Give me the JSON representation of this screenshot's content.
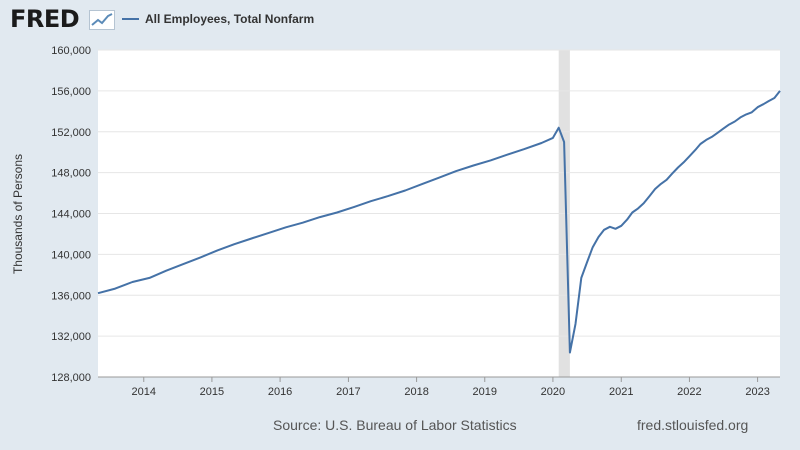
{
  "header": {
    "logo_text": "FRED",
    "logo_icon": "trend-line-icon",
    "series_label": "All Employees, Total Nonfarm"
  },
  "footer": {
    "source": "Source: U.S. Bureau of Labor Statistics",
    "site": "fred.stlouisfed.org"
  },
  "colors": {
    "background": "#e1e9f0",
    "plot_background": "#ffffff",
    "line": "#4572a7",
    "recession": "#e1e1e1",
    "grid": "#e6e6e6"
  },
  "chart_data": {
    "type": "line",
    "title": "",
    "xlabel": "",
    "ylabel": "Thousands of Persons",
    "xlim": [
      "2013-05-01",
      "2023-05-01"
    ],
    "ylim": [
      128000,
      160000
    ],
    "y_ticks": [
      128000,
      132000,
      136000,
      140000,
      144000,
      148000,
      152000,
      156000,
      160000
    ],
    "y_tick_labels": [
      "128,000",
      "132,000",
      "136,000",
      "140,000",
      "144,000",
      "148,000",
      "152,000",
      "156,000",
      "160,000"
    ],
    "x_ticks": [
      "2014-01-01",
      "2015-01-01",
      "2016-01-01",
      "2017-01-01",
      "2018-01-01",
      "2019-01-01",
      "2020-01-01",
      "2021-01-01",
      "2022-01-01",
      "2023-01-01"
    ],
    "x_tick_labels": [
      "2014",
      "2015",
      "2016",
      "2017",
      "2018",
      "2019",
      "2020",
      "2021",
      "2022",
      "2023"
    ],
    "grid": "horizontal",
    "legend": "top-left",
    "recessions": [
      {
        "start": "2020-02-01",
        "end": "2020-04-01"
      }
    ],
    "series": [
      {
        "name": "All Employees, Total Nonfarm",
        "color": "#4572a7",
        "points": [
          [
            "2013-05-01",
            136200
          ],
          [
            "2013-08-01",
            136650
          ],
          [
            "2013-11-01",
            137300
          ],
          [
            "2014-02-01",
            137700
          ],
          [
            "2014-05-01",
            138400
          ],
          [
            "2014-08-01",
            139050
          ],
          [
            "2014-11-01",
            139700
          ],
          [
            "2015-02-01",
            140400
          ],
          [
            "2015-05-01",
            141000
          ],
          [
            "2015-08-01",
            141550
          ],
          [
            "2015-11-01",
            142100
          ],
          [
            "2016-02-01",
            142650
          ],
          [
            "2016-05-01",
            143100
          ],
          [
            "2016-08-01",
            143650
          ],
          [
            "2016-11-01",
            144100
          ],
          [
            "2017-02-01",
            144650
          ],
          [
            "2017-05-01",
            145200
          ],
          [
            "2017-08-01",
            145700
          ],
          [
            "2017-11-01",
            146250
          ],
          [
            "2018-02-01",
            146900
          ],
          [
            "2018-05-01",
            147500
          ],
          [
            "2018-08-01",
            148150
          ],
          [
            "2018-11-01",
            148700
          ],
          [
            "2019-02-01",
            149200
          ],
          [
            "2019-05-01",
            149750
          ],
          [
            "2019-08-01",
            150300
          ],
          [
            "2019-11-01",
            150900
          ],
          [
            "2020-01-01",
            151400
          ],
          [
            "2020-02-01",
            152400
          ],
          [
            "2020-03-01",
            151000
          ],
          [
            "2020-04-01",
            130400
          ],
          [
            "2020-05-01",
            133200
          ],
          [
            "2020-06-01",
            137700
          ],
          [
            "2020-07-01",
            139200
          ],
          [
            "2020-08-01",
            140700
          ],
          [
            "2020-09-01",
            141700
          ],
          [
            "2020-10-01",
            142400
          ],
          [
            "2020-11-01",
            142700
          ],
          [
            "2020-12-01",
            142500
          ],
          [
            "2021-01-01",
            142800
          ],
          [
            "2021-02-01",
            143400
          ],
          [
            "2021-03-01",
            144100
          ],
          [
            "2021-04-01",
            144500
          ],
          [
            "2021-05-01",
            145000
          ],
          [
            "2021-06-01",
            145700
          ],
          [
            "2021-07-01",
            146400
          ],
          [
            "2021-08-01",
            146900
          ],
          [
            "2021-09-01",
            147300
          ],
          [
            "2021-10-01",
            147900
          ],
          [
            "2021-11-01",
            148500
          ],
          [
            "2021-12-01",
            149000
          ],
          [
            "2022-01-01",
            149600
          ],
          [
            "2022-02-01",
            150200
          ],
          [
            "2022-03-01",
            150800
          ],
          [
            "2022-04-01",
            151200
          ],
          [
            "2022-05-01",
            151500
          ],
          [
            "2022-06-01",
            151900
          ],
          [
            "2022-07-01",
            152300
          ],
          [
            "2022-08-01",
            152700
          ],
          [
            "2022-09-01",
            153000
          ],
          [
            "2022-10-01",
            153400
          ],
          [
            "2022-11-01",
            153700
          ],
          [
            "2022-12-01",
            153900
          ],
          [
            "2023-01-01",
            154400
          ],
          [
            "2023-02-01",
            154700
          ],
          [
            "2023-03-01",
            155000
          ],
          [
            "2023-04-01",
            155300
          ],
          [
            "2023-05-01",
            156000
          ]
        ]
      }
    ]
  }
}
